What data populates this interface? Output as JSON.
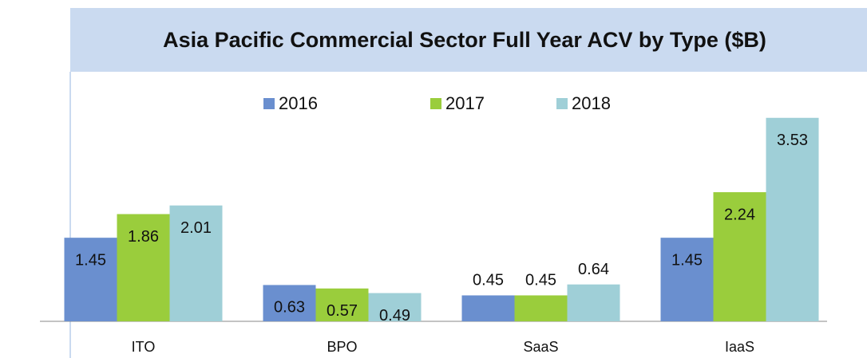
{
  "chart_data": {
    "type": "bar",
    "title": "Asia Pacific Commercial Sector Full Year ACV by Type ($B)",
    "categories": [
      "ITO",
      "BPO",
      "SaaS",
      "IaaS"
    ],
    "series": [
      {
        "name": "2016",
        "color": "#6a8fcf",
        "values": [
          1.45,
          0.63,
          0.45,
          1.45
        ]
      },
      {
        "name": "2017",
        "color": "#9acd3c",
        "values": [
          1.86,
          0.57,
          0.45,
          2.24
        ]
      },
      {
        "name": "2018",
        "color": "#9fcfd7",
        "values": [
          2.01,
          0.49,
          0.64,
          3.53
        ]
      }
    ]
  }
}
